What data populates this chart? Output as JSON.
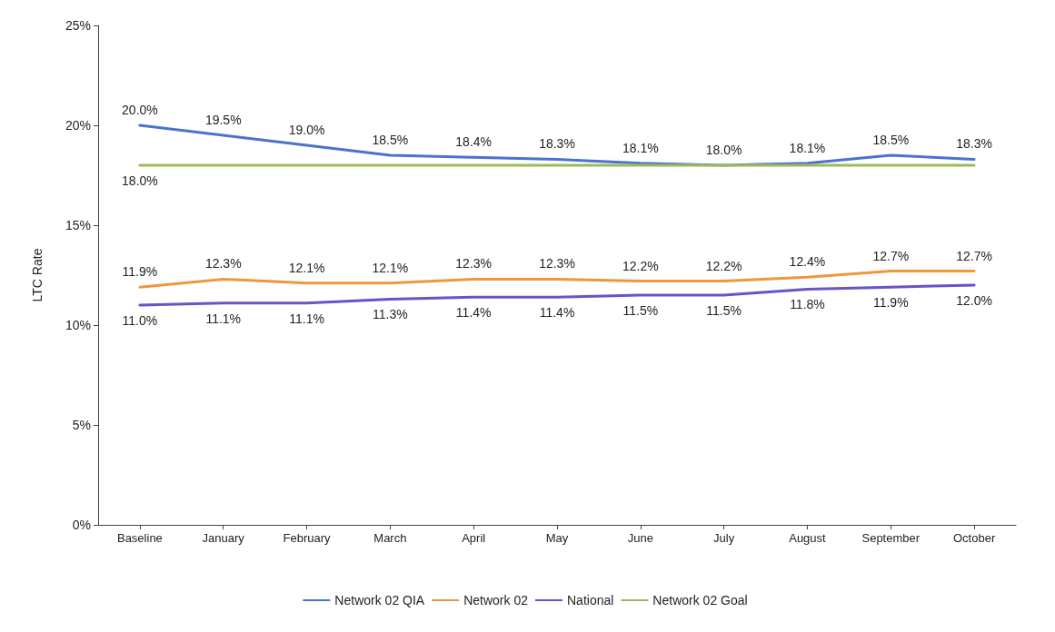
{
  "chart_data": {
    "type": "line",
    "ylabel": "LTC Rate",
    "categories": [
      "Baseline",
      "January",
      "February",
      "March",
      "April",
      "May",
      "June",
      "July",
      "August",
      "September",
      "October"
    ],
    "series": [
      {
        "name": "Network 02 QIA",
        "color": "#4a72d0",
        "values": [
          20.0,
          19.5,
          19.0,
          18.5,
          18.4,
          18.3,
          18.1,
          18.0,
          18.1,
          18.5,
          18.3
        ],
        "value_labels": [
          "20.0%",
          "19.5%",
          "19.0%",
          "18.5%",
          "18.4%",
          "18.3%",
          "18.1%",
          "18.0%",
          "18.1%",
          "18.5%",
          "18.3%"
        ]
      },
      {
        "name": "Network 02",
        "color": "#f0963c",
        "values": [
          11.9,
          12.3,
          12.1,
          12.1,
          12.3,
          12.3,
          12.2,
          12.2,
          12.4,
          12.7,
          12.7
        ],
        "value_labels": [
          "11.9%",
          "12.3%",
          "12.1%",
          "12.1%",
          "12.3%",
          "12.3%",
          "12.2%",
          "12.2%",
          "12.4%",
          "12.7%",
          "12.7%"
        ]
      },
      {
        "name": "National",
        "color": "#6a52c8",
        "values": [
          11.0,
          11.1,
          11.1,
          11.3,
          11.4,
          11.4,
          11.5,
          11.5,
          11.8,
          11.9,
          12.0
        ],
        "value_labels": [
          "11.0%",
          "11.1%",
          "11.1%",
          "11.3%",
          "11.4%",
          "11.4%",
          "11.5%",
          "11.5%",
          "11.8%",
          "11.9%",
          "12.0%"
        ]
      },
      {
        "name": "Network 02 Goal",
        "color": "#9bbb59",
        "values": [
          18.0,
          18.0,
          18.0,
          18.0,
          18.0,
          18.0,
          18.0,
          18.0,
          18.0,
          18.0,
          18.0
        ],
        "value_labels": [
          "18.0%",
          null,
          null,
          null,
          null,
          null,
          null,
          null,
          null,
          null,
          null
        ]
      }
    ],
    "ylim": [
      0,
      25
    ],
    "yticks": [
      {
        "value": 0,
        "label": "0%"
      },
      {
        "value": 5,
        "label": "5%"
      },
      {
        "value": 10,
        "label": "10%"
      },
      {
        "value": 15,
        "label": "15%"
      },
      {
        "value": 20,
        "label": "20%"
      },
      {
        "value": 25,
        "label": "25%"
      }
    ],
    "grid": false,
    "legend": "bottom",
    "marker": "none",
    "line_style": "solid"
  }
}
